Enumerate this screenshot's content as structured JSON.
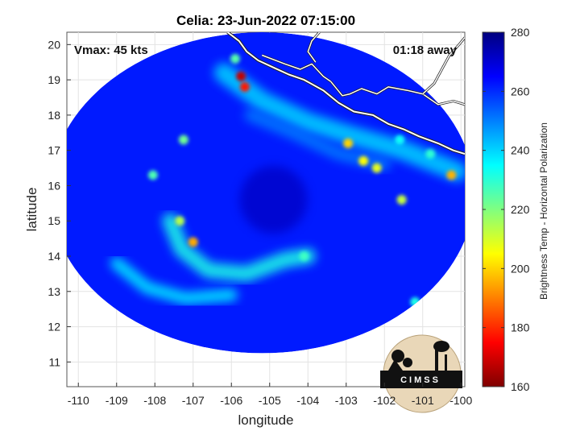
{
  "chart_data": {
    "type": "heatmap",
    "title": "Celia: 23-Jun-2022 07:15:00",
    "xlabel": "longitude",
    "ylabel": "latitude",
    "xlim": [
      -110.3,
      -99.9
    ],
    "ylim": [
      10.3,
      20.35
    ],
    "xticks": [
      -110,
      -109,
      -108,
      -107,
      -106,
      -105,
      -104,
      -103,
      -102,
      -101,
      -100
    ],
    "yticks": [
      11,
      12,
      13,
      14,
      15,
      16,
      17,
      18,
      19,
      20
    ],
    "grid": true,
    "annotations": {
      "vmax": "Vmax: 45 kts",
      "time_away": "01:18 away"
    },
    "colorbar": {
      "label": "Brightness Temp - Horizontal Polarization",
      "range": [
        160,
        280
      ],
      "ticks": [
        160,
        180,
        200,
        220,
        240,
        260,
        280
      ],
      "colormap": "jet"
    },
    "swath": {
      "center_lon": -105.2,
      "center_lat": 15.8,
      "radius_lon": 5.55,
      "radius_lat": 4.55,
      "background_value": 262
    },
    "features": [
      {
        "type": "band",
        "value": 240,
        "points": [
          [
            -106.2,
            19.2
          ],
          [
            -105.2,
            18.4
          ],
          [
            -104.0,
            17.8
          ],
          [
            -102.8,
            17.4
          ],
          [
            -101.5,
            17.0
          ],
          [
            -100.1,
            16.4
          ]
        ],
        "width": 0.55
      },
      {
        "type": "band",
        "value": 232,
        "points": [
          [
            -107.6,
            15.0
          ],
          [
            -107.3,
            14.2
          ],
          [
            -106.6,
            13.6
          ],
          [
            -105.6,
            13.5
          ],
          [
            -104.6,
            13.9
          ],
          [
            -104.0,
            14.0
          ]
        ],
        "width": 0.45
      },
      {
        "type": "band",
        "value": 236,
        "points": [
          [
            -109.0,
            13.8
          ],
          [
            -108.2,
            13.1
          ],
          [
            -107.2,
            12.8
          ],
          [
            -106.0,
            12.9
          ]
        ],
        "width": 0.35
      },
      {
        "type": "band",
        "value": 250,
        "points": [
          [
            -105.5,
            18.0
          ],
          [
            -104.4,
            17.5
          ],
          [
            -103.2,
            16.9
          ],
          [
            -102.0,
            16.6
          ]
        ],
        "width": 0.35
      },
      {
        "type": "spot",
        "value": 168,
        "lon": -105.75,
        "lat": 19.1
      },
      {
        "type": "spot",
        "value": 178,
        "lon": -105.65,
        "lat": 18.8
      },
      {
        "type": "spot",
        "value": 225,
        "lon": -105.9,
        "lat": 19.6
      },
      {
        "type": "spot",
        "value": 195,
        "lon": -107.0,
        "lat": 14.4
      },
      {
        "type": "spot",
        "value": 214,
        "lon": -107.35,
        "lat": 15.0
      },
      {
        "type": "spot",
        "value": 200,
        "lon": -102.95,
        "lat": 17.2
      },
      {
        "type": "spot",
        "value": 205,
        "lon": -102.55,
        "lat": 16.7
      },
      {
        "type": "spot",
        "value": 208,
        "lon": -102.2,
        "lat": 16.5
      },
      {
        "type": "spot",
        "value": 196,
        "lon": -100.25,
        "lat": 16.3
      },
      {
        "type": "spot",
        "value": 212,
        "lon": -101.55,
        "lat": 15.6
      },
      {
        "type": "spot",
        "value": 222,
        "lon": -107.25,
        "lat": 17.3
      },
      {
        "type": "spot",
        "value": 226,
        "lon": -108.05,
        "lat": 16.3
      },
      {
        "type": "spot",
        "value": 228,
        "lon": -104.1,
        "lat": 14.0
      },
      {
        "type": "spot",
        "value": 232,
        "lon": -101.2,
        "lat": 12.7
      },
      {
        "type": "spot",
        "value": 234,
        "lon": -101.6,
        "lat": 17.3
      },
      {
        "type": "spot",
        "value": 230,
        "lon": -100.8,
        "lat": 16.9
      }
    ],
    "eye": {
      "lon": -104.9,
      "lat": 15.6,
      "value": 272
    },
    "coastline": [
      [
        -106.1,
        20.35
      ],
      [
        -105.8,
        20.1
      ],
      [
        -105.6,
        19.8
      ],
      [
        -105.3,
        19.55
      ],
      [
        -104.9,
        19.35
      ],
      [
        -104.5,
        19.15
      ],
      [
        -104.1,
        19.0
      ],
      [
        -103.6,
        18.7
      ],
      [
        -103.2,
        18.35
      ],
      [
        -102.8,
        18.1
      ],
      [
        -102.3,
        18.0
      ],
      [
        -101.9,
        17.75
      ],
      [
        -101.5,
        17.6
      ],
      [
        -101.1,
        17.4
      ],
      [
        -100.6,
        17.2
      ],
      [
        -100.2,
        17.0
      ],
      [
        -99.9,
        16.9
      ]
    ],
    "inland_lines": [
      [
        [
          -105.2,
          19.7
        ],
        [
          -104.6,
          19.45
        ],
        [
          -104.2,
          19.3
        ],
        [
          -103.9,
          19.45
        ],
        [
          -103.6,
          19.1
        ],
        [
          -103.4,
          18.95
        ]
      ],
      [
        [
          -103.4,
          18.95
        ],
        [
          -103.1,
          18.55
        ],
        [
          -102.9,
          18.6
        ],
        [
          -102.6,
          18.75
        ],
        [
          -102.2,
          18.6
        ],
        [
          -101.9,
          18.8
        ],
        [
          -101.4,
          18.7
        ],
        [
          -101.0,
          18.6
        ],
        [
          -100.6,
          18.3
        ],
        [
          -100.2,
          18.4
        ],
        [
          -99.9,
          18.3
        ]
      ],
      [
        [
          -101.0,
          18.6
        ],
        [
          -100.7,
          18.9
        ],
        [
          -100.5,
          19.3
        ],
        [
          -100.3,
          19.7
        ],
        [
          -100.05,
          20.0
        ],
        [
          -99.9,
          20.2
        ]
      ],
      [
        [
          -103.7,
          20.35
        ],
        [
          -103.9,
          20.1
        ],
        [
          -104.0,
          19.8
        ],
        [
          -103.8,
          19.5
        ]
      ]
    ],
    "logo": {
      "text": "CIMSS"
    }
  }
}
